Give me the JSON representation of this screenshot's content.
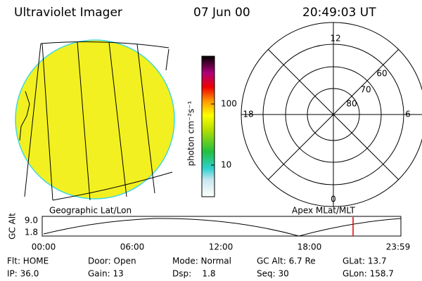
{
  "header": {
    "title": "Ultraviolet Imager",
    "date": "07 Jun 00",
    "time": "20:49:03 UT"
  },
  "colorbar": {
    "label": "photon cm⁻²s⁻¹",
    "ticks": [
      "100",
      "10"
    ]
  },
  "polar": {
    "mlt": [
      "12",
      "18",
      "6",
      "0"
    ],
    "mlat": [
      "60",
      "70",
      "80"
    ]
  },
  "captions": {
    "left": "Geographic Lat/Lon",
    "right": "Apex MLat/MLT"
  },
  "altitude_plot": {
    "ylabel": "GC Alt",
    "yticks": [
      "9.0",
      "1.8"
    ],
    "xticks": [
      "00:00",
      "06:00",
      "12:00",
      "18:00",
      "23:59"
    ]
  },
  "status": {
    "rows": [
      [
        "Flt: HOME",
        "Door: Open",
        "Mode: Normal",
        "GC Alt: 6.7 Re",
        "GLat: 13.7"
      ],
      [
        "IP: 36.0",
        "Gain: 13",
        "Dsp:    1.8",
        "Seq: 30",
        "GLon: 158.7"
      ]
    ]
  }
}
